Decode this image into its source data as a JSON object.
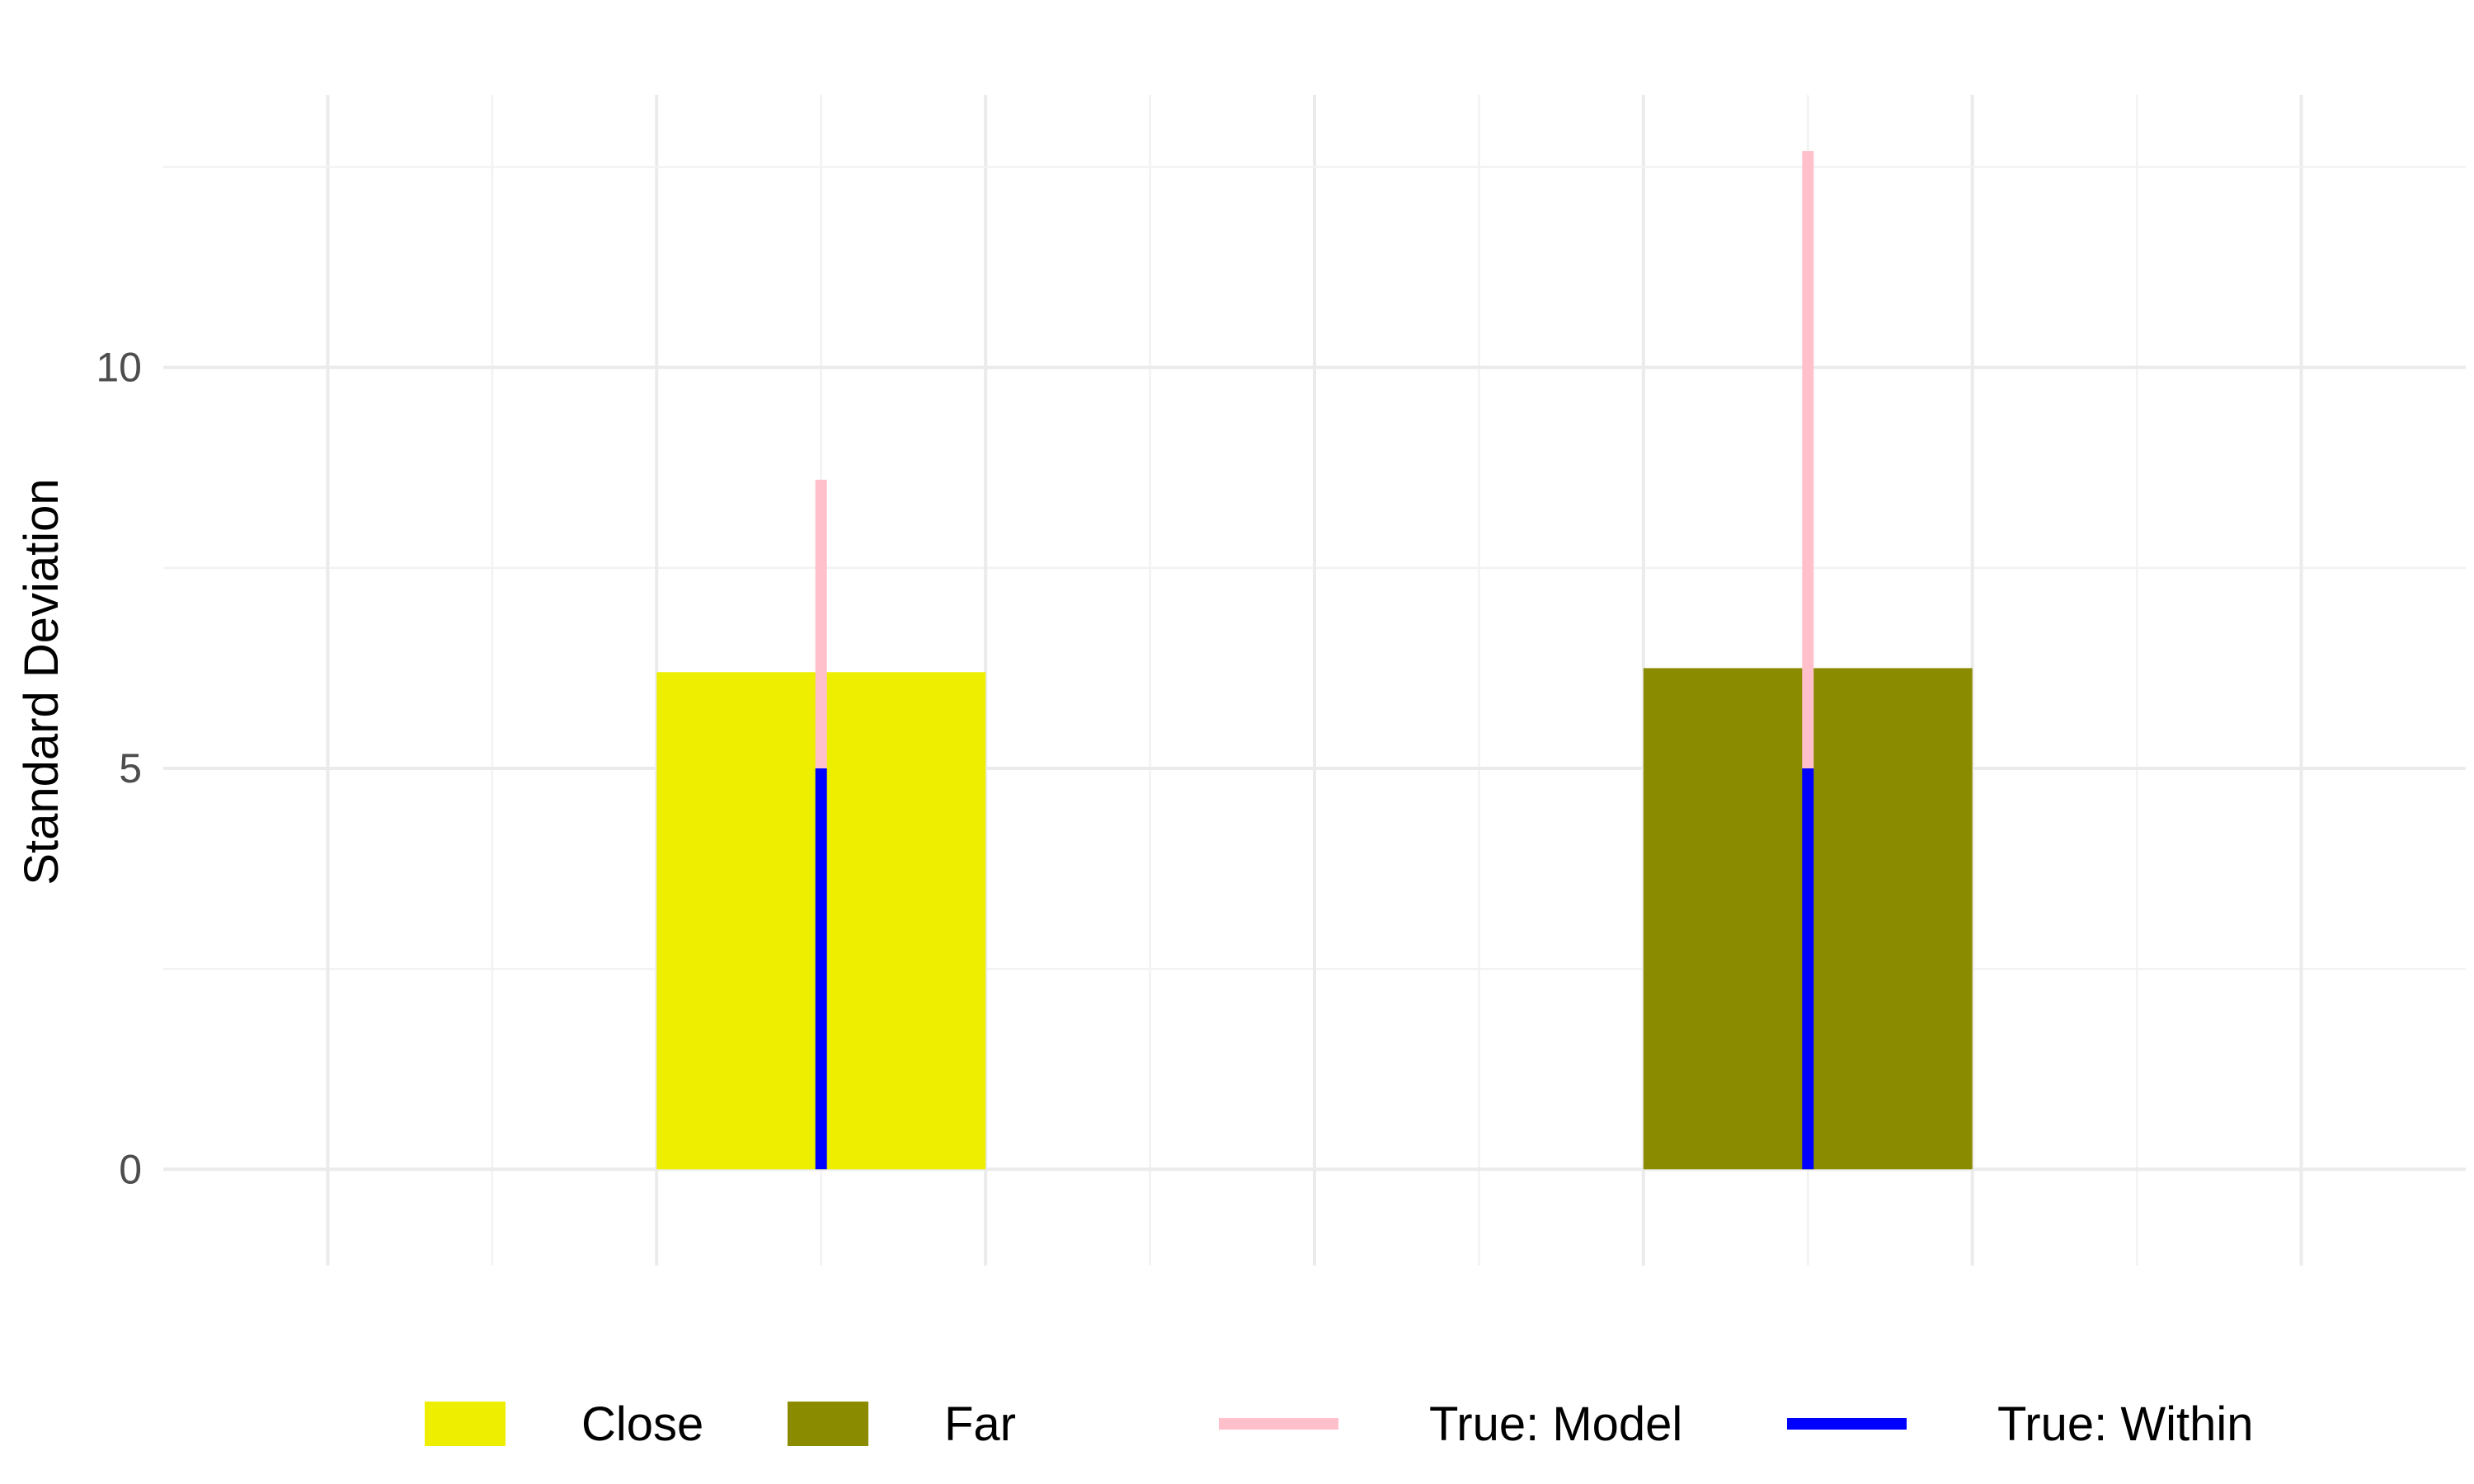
{
  "chart_data": {
    "type": "bar",
    "title": "",
    "xlabel": "",
    "ylabel": "Standard Deviation",
    "ylim": [
      -1.2,
      13.4
    ],
    "xlim": [
      0,
      7
    ],
    "y_ticks": [
      0,
      5,
      10
    ],
    "y_tick_labels": [
      "0",
      "5",
      "10"
    ],
    "grid": true,
    "legend_position": "bottom",
    "bars": [
      {
        "category": "Close",
        "x": 2,
        "width": 1,
        "value": 6.2,
        "color": "#eeee00"
      },
      {
        "category": "Far",
        "x": 5,
        "width": 1,
        "value": 6.25,
        "color": "#8b8b00"
      }
    ],
    "segments": [
      {
        "series": "True: Model",
        "x": 2,
        "y_from": 5,
        "y_to": 8.6,
        "color": "#ffc0cb"
      },
      {
        "series": "True: Model",
        "x": 5,
        "y_from": 5,
        "y_to": 12.7,
        "color": "#ffc0cb"
      },
      {
        "series": "True: Within",
        "x": 2,
        "y_from": 0,
        "y_to": 5,
        "color": "#0000ff"
      },
      {
        "series": "True: Within",
        "x": 5,
        "y_from": 0,
        "y_to": 5,
        "color": "#0000ff"
      }
    ],
    "legend": [
      {
        "label": "Close",
        "kind": "fill",
        "color": "#eeee00"
      },
      {
        "label": "Far",
        "kind": "fill",
        "color": "#8b8b00"
      },
      {
        "label": "True: Model",
        "kind": "line",
        "color": "#ffc0cb"
      },
      {
        "label": "True: Within",
        "kind": "line",
        "color": "#0000ff"
      }
    ]
  }
}
